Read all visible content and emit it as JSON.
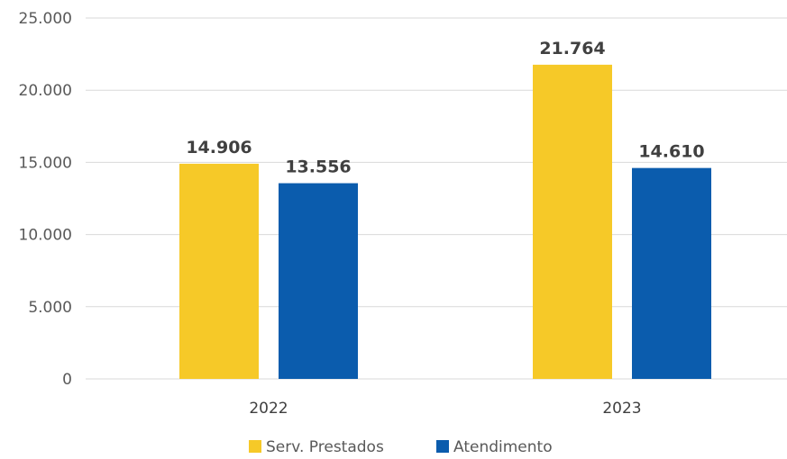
{
  "chart_data": {
    "type": "bar",
    "categories": [
      "2022",
      "2023"
    ],
    "series": [
      {
        "name": "Serv. Prestados",
        "values": [
          14906,
          21764
        ],
        "labels": [
          "14.906",
          "21.764"
        ],
        "color": "#f6c928"
      },
      {
        "name": "Atendimento",
        "values": [
          13556,
          14610
        ],
        "labels": [
          "13.556",
          "14.610"
        ],
        "color": "#0b5cad"
      }
    ],
    "yticks": [
      0,
      5000,
      10000,
      15000,
      20000,
      25000
    ],
    "ytick_labels": [
      "0",
      "5.000",
      "10.000",
      "15.000",
      "20.000",
      "25.000"
    ],
    "ylim": [
      0,
      25000
    ],
    "title": "",
    "xlabel": "",
    "ylabel": "",
    "grid": true,
    "legend_position": "bottom"
  }
}
